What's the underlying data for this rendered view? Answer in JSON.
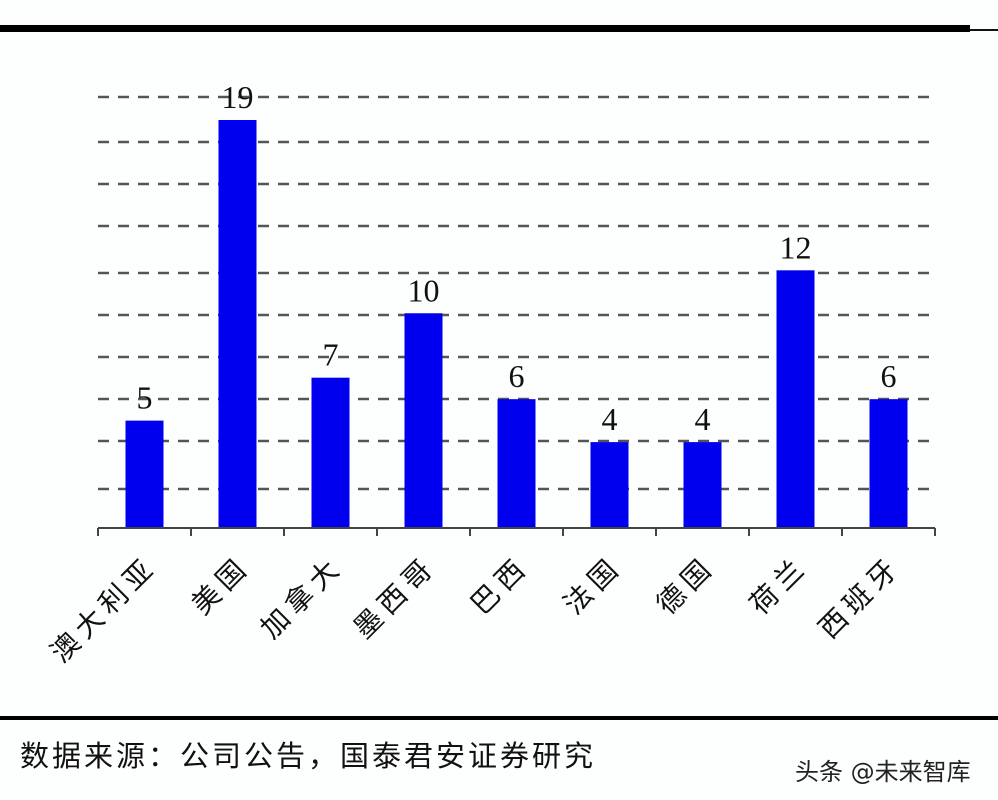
{
  "chart_data": {
    "type": "bar",
    "title": "",
    "xlabel": "",
    "ylabel": "",
    "categories": [
      "澳大利亚",
      "美国",
      "加拿大",
      "墨西哥",
      "巴西",
      "法国",
      "德国",
      "荷兰",
      "西班牙"
    ],
    "values": [
      5,
      19,
      7,
      10,
      6,
      4,
      4,
      12,
      6
    ],
    "ylim": [
      0,
      20
    ],
    "grid": true,
    "grid_style": "dashed horizontal",
    "legend": null,
    "data_labels": true,
    "bar_color": "#0000ee"
  },
  "footer": {
    "source": "数据来源：公司公告，国泰君安证券研究",
    "watermark": "头条 @未来智库"
  }
}
